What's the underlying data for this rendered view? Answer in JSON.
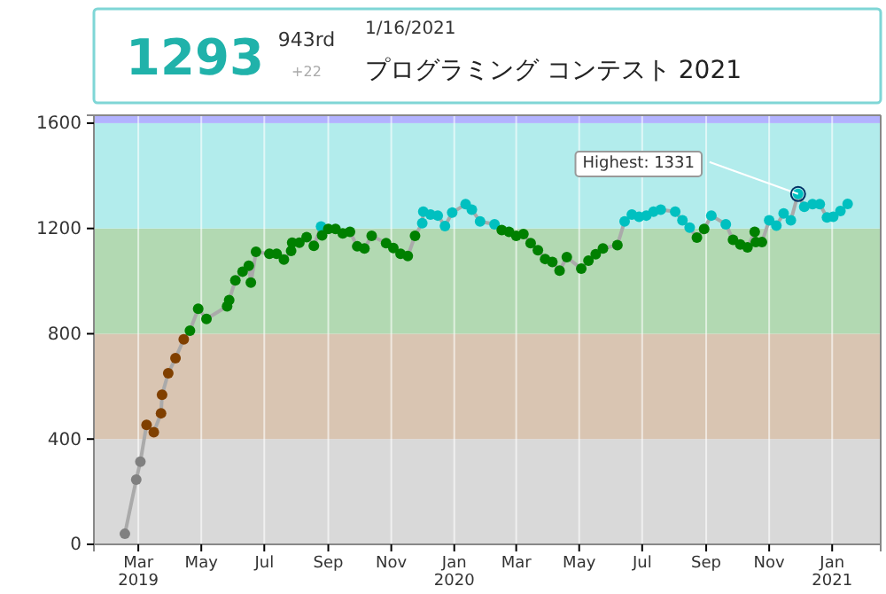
{
  "chart_data": {
    "type": "line",
    "title": "プログラミング コンテスト 2021",
    "subtitle": "1/16/2021",
    "annotations": [
      "1293",
      "943rd",
      "+22",
      {
        "text": "Highest: 1331",
        "x": "2020-11-29",
        "y": 1331
      }
    ],
    "x": [
      "2019-02-16",
      "2019-02-27",
      "2019-03-03",
      "2019-03-09",
      "2019-03-16",
      "2019-03-23",
      "2019-03-24",
      "2019-03-30",
      "2019-04-06",
      "2019-04-14",
      "2019-04-20",
      "2019-04-28",
      "2019-05-06",
      "2019-05-26",
      "2019-05-28",
      "2019-06-03",
      "2019-06-10",
      "2019-06-16",
      "2019-06-18",
      "2019-06-23",
      "2019-07-06",
      "2019-07-13",
      "2019-07-20",
      "2019-07-27",
      "2019-07-28",
      "2019-08-04",
      "2019-08-11",
      "2019-08-18",
      "2019-08-25",
      "2019-08-26",
      "2019-09-01",
      "2019-09-08",
      "2019-09-15",
      "2019-09-22",
      "2019-09-29",
      "2019-10-06",
      "2019-10-13",
      "2019-10-27",
      "2019-11-03",
      "2019-11-10",
      "2019-11-17",
      "2019-11-24",
      "2019-12-01",
      "2019-12-02",
      "2019-12-09",
      "2019-12-16",
      "2019-12-23",
      "2019-12-30",
      "2020-01-12",
      "2020-01-18",
      "2020-01-26",
      "2020-02-09",
      "2020-02-16",
      "2020-02-23",
      "2020-03-01",
      "2020-03-08",
      "2020-03-15",
      "2020-03-22",
      "2020-03-29",
      "2020-04-05",
      "2020-04-12",
      "2020-04-19",
      "2020-05-03",
      "2020-05-10",
      "2020-05-17",
      "2020-05-24",
      "2020-06-07",
      "2020-06-14",
      "2020-06-21",
      "2020-06-28",
      "2020-07-05",
      "2020-07-12",
      "2020-07-19",
      "2020-08-02",
      "2020-08-09",
      "2020-08-16",
      "2020-08-23",
      "2020-08-30",
      "2020-09-06",
      "2020-09-20",
      "2020-09-27",
      "2020-10-04",
      "2020-10-11",
      "2020-10-18",
      "2020-10-19",
      "2020-10-25",
      "2020-11-01",
      "2020-11-08",
      "2020-11-15",
      "2020-11-22",
      "2020-11-29",
      "2020-12-05",
      "2020-12-13",
      "2020-12-20",
      "2020-12-27",
      "2021-01-02",
      "2021-01-09",
      "2021-01-16"
    ],
    "series": [
      {
        "color": "#aaaaaa",
        "values": [
          40,
          246,
          314,
          454,
          426,
          498,
          568,
          650,
          707,
          779,
          812,
          895,
          856,
          904,
          928,
          1003,
          1036,
          1058,
          994,
          1111,
          1104,
          1104,
          1082,
          1115,
          1146,
          1146,
          1167,
          1134,
          1207,
          1174,
          1198,
          1198,
          1181,
          1187,
          1132,
          1124,
          1172,
          1144,
          1126,
          1104,
          1095,
          1172,
          1220,
          1264,
          1253,
          1249,
          1209,
          1260,
          1292,
          1271,
          1227,
          1216,
          1194,
          1187,
          1172,
          1179,
          1144,
          1117,
          1084,
          1073,
          1040,
          1091,
          1047,
          1078,
          1102,
          1124,
          1137,
          1227,
          1253,
          1244,
          1249,
          1264,
          1271,
          1264,
          1231,
          1203,
          1165,
          1198,
          1249,
          1216,
          1157,
          1139,
          1128,
          1187,
          1148,
          1148,
          1231,
          1211,
          1257,
          1231,
          1331,
          1282,
          1292,
          1292,
          1242,
          1244,
          1266,
          1293
        ],
        "colors": [
          "#808080",
          "#808080",
          "#808080",
          "#804000",
          "#804000",
          "#804000",
          "#804000",
          "#804000",
          "#804000",
          "#804000",
          "#008000",
          "#008000",
          "#008000",
          "#008000",
          "#008000",
          "#008000",
          "#008000",
          "#008000",
          "#008000",
          "#008000",
          "#008000",
          "#008000",
          "#008000",
          "#008000",
          "#008000",
          "#008000",
          "#008000",
          "#008000",
          "#00c0c0",
          "#008000",
          "#008000",
          "#008000",
          "#008000",
          "#008000",
          "#008000",
          "#008000",
          "#008000",
          "#008000",
          "#008000",
          "#008000",
          "#008000",
          "#008000",
          "#00c0c0",
          "#00c0c0",
          "#00c0c0",
          "#00c0c0",
          "#00c0c0",
          "#00c0c0",
          "#00c0c0",
          "#00c0c0",
          "#00c0c0",
          "#00c0c0",
          "#008000",
          "#008000",
          "#008000",
          "#008000",
          "#008000",
          "#008000",
          "#008000",
          "#008000",
          "#008000",
          "#008000",
          "#008000",
          "#008000",
          "#008000",
          "#008000",
          "#008000",
          "#00c0c0",
          "#00c0c0",
          "#00c0c0",
          "#00c0c0",
          "#00c0c0",
          "#00c0c0",
          "#00c0c0",
          "#00c0c0",
          "#00c0c0",
          "#008000",
          "#008000",
          "#00c0c0",
          "#00c0c0",
          "#008000",
          "#008000",
          "#008000",
          "#008000",
          "#008000",
          "#008000",
          "#00c0c0",
          "#00c0c0",
          "#00c0c0",
          "#00c0c0",
          "#00c0c0",
          "#00c0c0",
          "#00c0c0",
          "#00c0c0",
          "#00c0c0",
          "#00c0c0",
          "#00c0c0",
          "#00c0c0"
        ]
      }
    ],
    "marker": "circle",
    "grid": "x",
    "xlim": [
      "2019-01-17",
      "2021-02-17"
    ],
    "xticks": [
      {
        "value": "2019-03-01",
        "label": "Mar\n2019"
      },
      {
        "value": "2019-05-01",
        "label": "May"
      },
      {
        "value": "2019-07-01",
        "label": "Jul"
      },
      {
        "value": "2019-09-01",
        "label": "Sep"
      },
      {
        "value": "2019-11-01",
        "label": "Nov"
      },
      {
        "value": "2020-01-01",
        "label": "Jan\n2020"
      },
      {
        "value": "2020-03-01",
        "label": "Mar"
      },
      {
        "value": "2020-05-01",
        "label": "May"
      },
      {
        "value": "2020-07-01",
        "label": "Jul"
      },
      {
        "value": "2020-09-01",
        "label": "Sep"
      },
      {
        "value": "2020-11-01",
        "label": "Nov"
      },
      {
        "value": "2021-01-01",
        "label": "Jan\n2021"
      }
    ],
    "ylim": [
      0,
      1630
    ],
    "yticks": [
      0,
      400,
      800,
      1200,
      1600
    ],
    "bands": [
      {
        "axis": "y",
        "from": 0,
        "to": 400,
        "color": "#d9d9d9"
      },
      {
        "axis": "y",
        "from": 400,
        "to": 800,
        "color": "#d9c5b2"
      },
      {
        "axis": "y",
        "from": 800,
        "to": 1200,
        "color": "#b2d9b2"
      },
      {
        "axis": "y",
        "from": 1200,
        "to": 1600,
        "color": "#b2ecec"
      },
      {
        "axis": "y",
        "from": 1600,
        "to": 1630,
        "color": "#b2b2ff"
      }
    ]
  }
}
